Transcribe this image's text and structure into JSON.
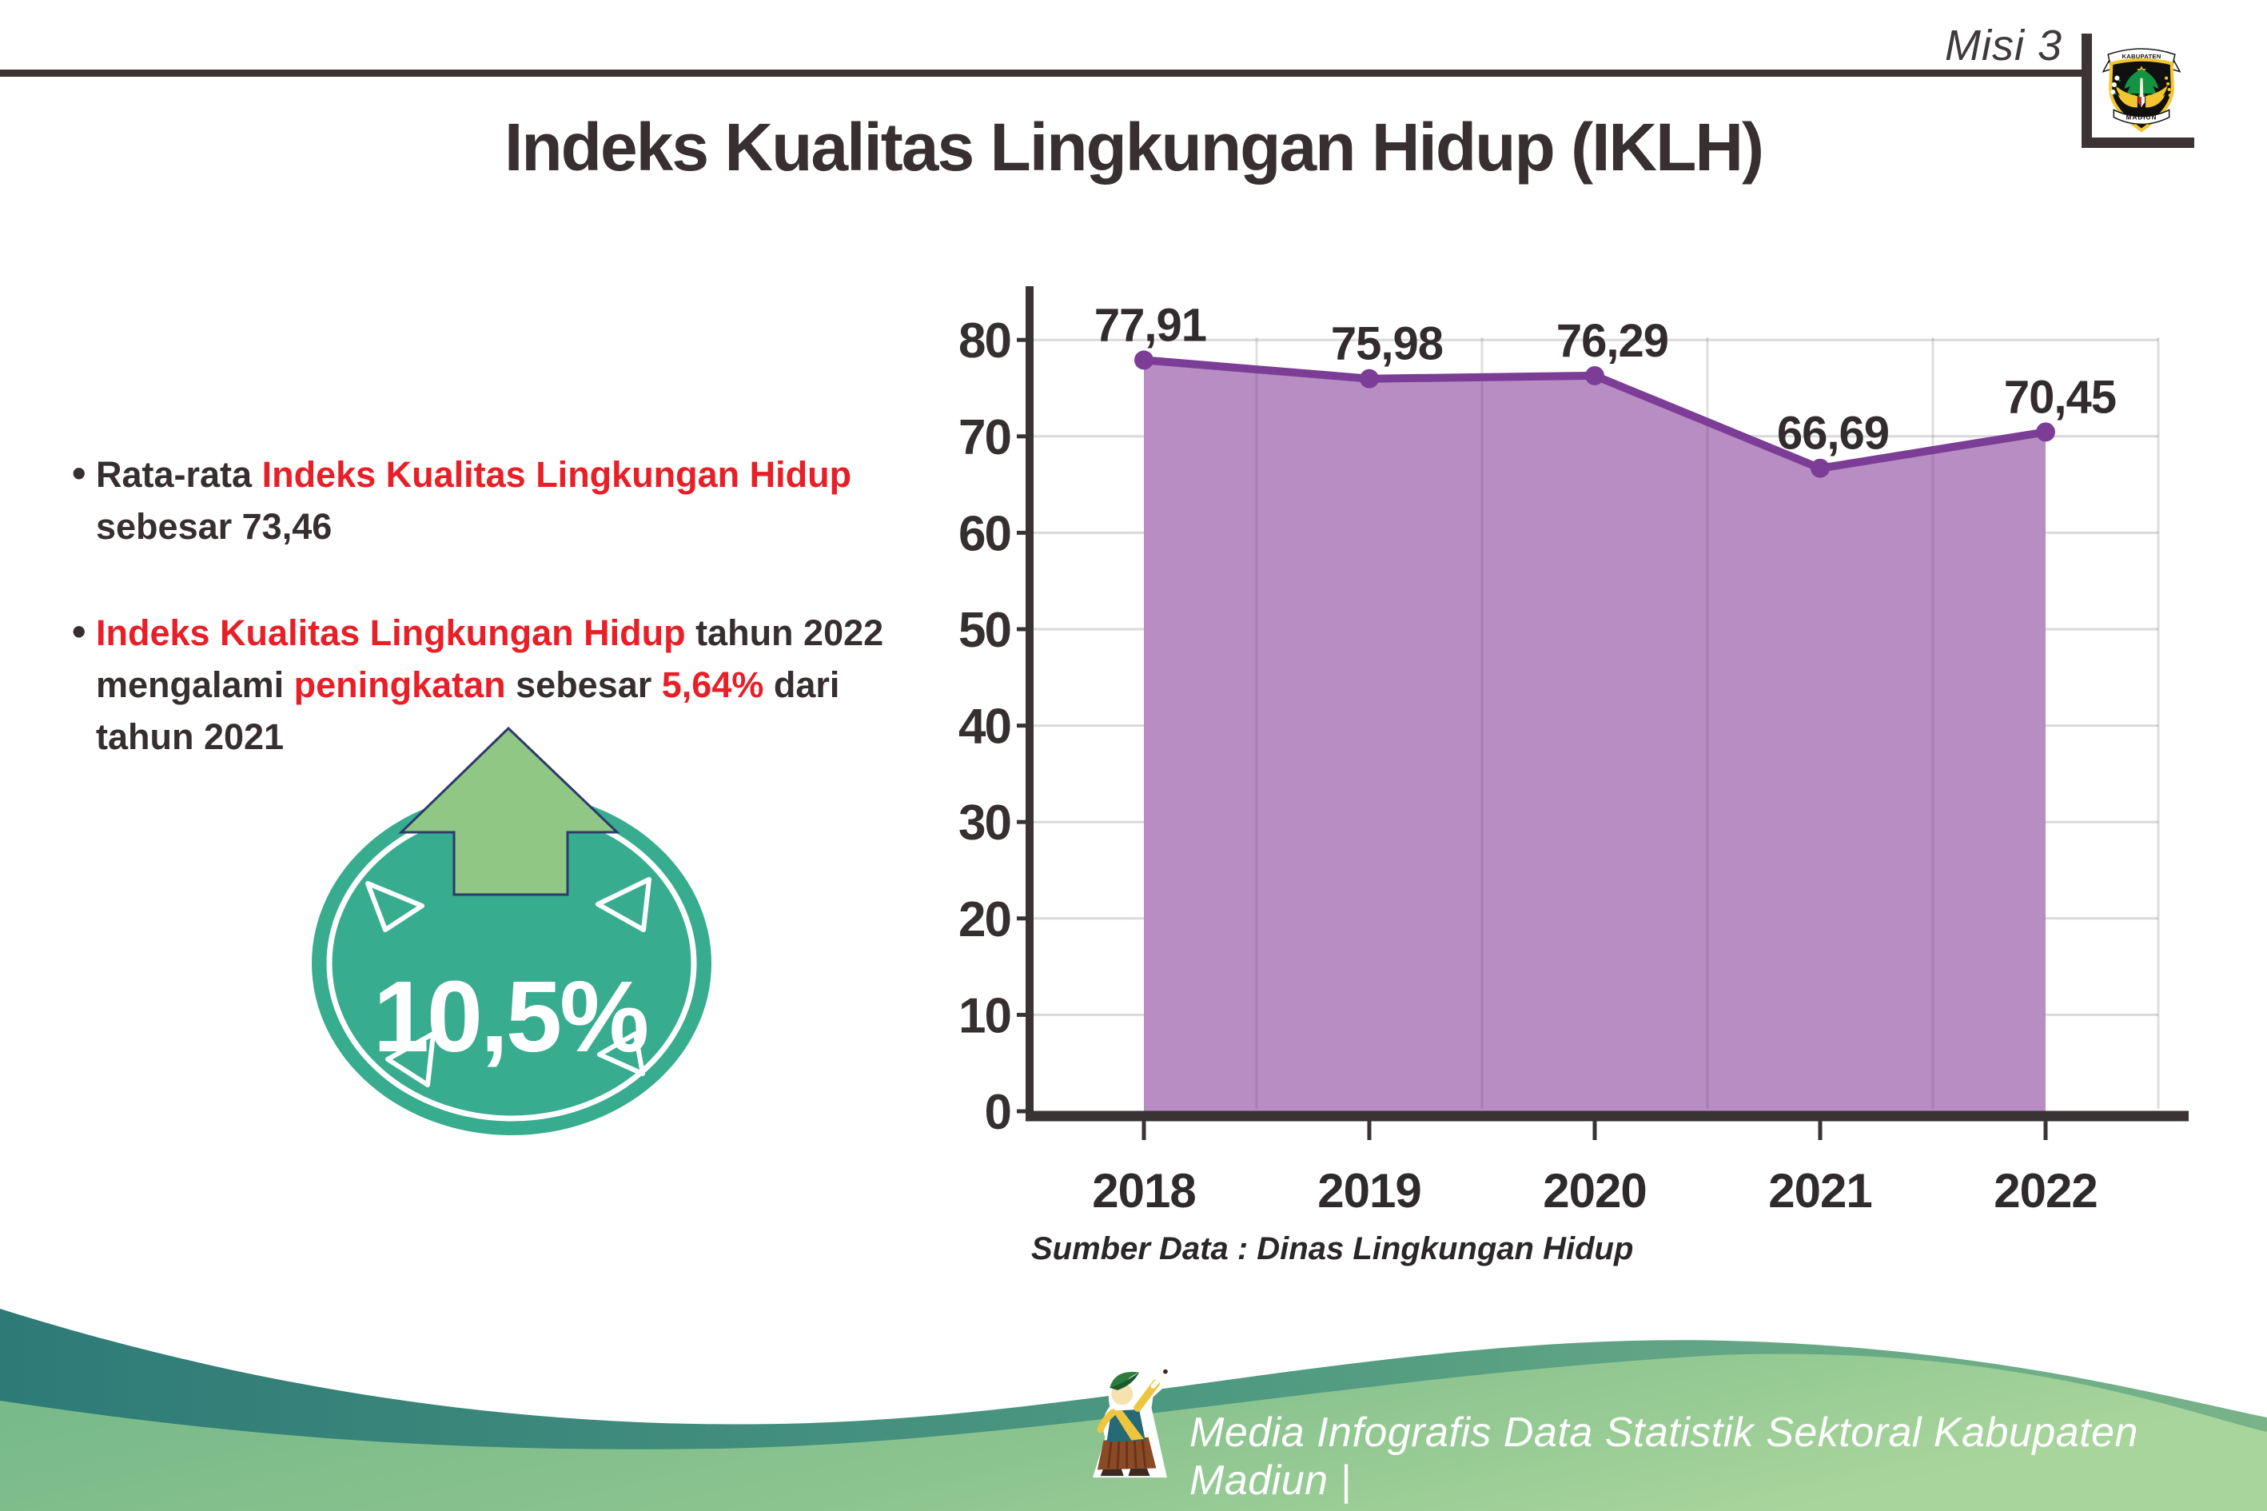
{
  "header": {
    "misi_label": "Misi 3",
    "title": "Indeks Kualitas Lingkungan Hidup (IKLH)"
  },
  "logo": {
    "banner_top": "KABUPATEN",
    "banner_bottom": "MADIUN"
  },
  "bullets": {
    "items": [
      [
        {
          "text": "Rata-rata ",
          "color": "dark"
        },
        {
          "text": "Indeks Kualitas Lingkungan Hidup",
          "color": "red"
        },
        {
          "text": " sebesar 73,46",
          "color": "dark"
        }
      ],
      [
        {
          "text": "Indeks Kualitas Lingkungan Hidup",
          "color": "red"
        },
        {
          "text": " tahun 2022 mengalami ",
          "color": "dark"
        },
        {
          "text": "peningkatan",
          "color": "red"
        },
        {
          "text": " sebesar ",
          "color": "dark"
        },
        {
          "text": "5,64%",
          "color": "red"
        },
        {
          "text": " dari tahun 2021",
          "color": "dark"
        }
      ]
    ]
  },
  "badge": {
    "value": "10,5%",
    "direction": "up",
    "circle_color": "#38ac8f",
    "arrow_color": "#91c784"
  },
  "chart_data": {
    "type": "area",
    "title": "",
    "categories": [
      "2018",
      "2019",
      "2020",
      "2021",
      "2022"
    ],
    "values": [
      77.91,
      75.98,
      76.29,
      66.69,
      70.45
    ],
    "value_labels": [
      "77,91",
      "75,98",
      "76,29",
      "66,69",
      "70,45"
    ],
    "xlabel": "",
    "ylabel": "",
    "ylim": [
      0,
      80
    ],
    "yticks": [
      0,
      10,
      20,
      30,
      40,
      50,
      60,
      70,
      80
    ],
    "grid": true,
    "legend": false,
    "line_color": "#7c3d96",
    "fill_color": "#b78dc3",
    "axis_color": "#3a3334",
    "source_note": "Sumber Data : Dinas Lingkungan Hidup"
  },
  "source": {
    "text": "Sumber Data : Dinas Lingkungan Hidup"
  },
  "footer": {
    "text": "Media Infografis Data Statistik Sektoral Kabupaten Madiun |"
  },
  "colors": {
    "accent_red": "#e81f27",
    "text_dark": "#362e2f",
    "wave_teal": "#30807b",
    "wave_green": "#8cc48f"
  }
}
